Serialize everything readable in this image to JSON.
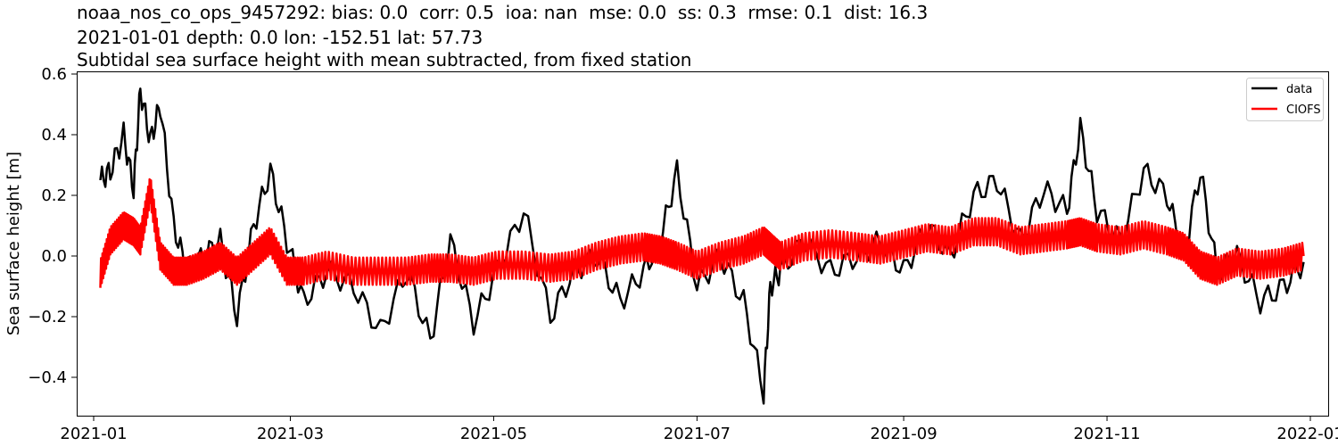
{
  "figure": {
    "title_lines": [
      "noaa_nos_co_ops_9457292: bias: 0.0  corr: 0.5  ioa: nan  mse: 0.0  ss: 0.3  rmse: 0.1  dist: 16.3",
      "2021-01-01 depth: 0.0 lon: -152.51 lat: 57.73",
      "Subtidal sea surface height with mean subtracted, from fixed station"
    ],
    "ylabel": "Sea surface height [m]",
    "colors": {
      "data": "#000000",
      "CIOFS": "#ff0000"
    }
  },
  "chart_data": {
    "type": "line",
    "title": "noaa_nos_co_ops_9457292: bias: 0.0  corr: 0.5  ioa: nan  mse: 0.0  ss: 0.3  rmse: 0.1  dist: 16.3 / 2021-01-01 depth: 0.0 lon: -152.51 lat: 57.73 / Subtidal sea surface height with mean subtracted, from fixed station",
    "xlabel": "",
    "ylabel": "Sea surface height [m]",
    "x_ticks": [
      "2021-01",
      "2021-03",
      "2021-05",
      "2021-07",
      "2021-09",
      "2021-11",
      "2022-01"
    ],
    "y_ticks": [
      -0.4,
      -0.2,
      0.0,
      0.2,
      0.4,
      0.6
    ],
    "y_tick_labels": [
      "−0.4",
      "−0.2",
      "0.0",
      "0.2",
      "0.4",
      "0.6"
    ],
    "ylim": [
      -0.53,
      0.61
    ],
    "xlim": [
      "2020-12-27",
      "2022-01-06"
    ],
    "grid": false,
    "legend": {
      "position": "upper right",
      "entries": [
        "data",
        "CIOFS"
      ]
    },
    "x": [
      "2021-01-03",
      "2021-01-06",
      "2021-01-10",
      "2021-01-13",
      "2021-01-15",
      "2021-01-18",
      "2021-01-21",
      "2021-01-25",
      "2021-01-29",
      "2021-02-03",
      "2021-02-08",
      "2021-02-13",
      "2021-02-18",
      "2021-02-23",
      "2021-02-28",
      "2021-03-05",
      "2021-03-12",
      "2021-03-20",
      "2021-03-28",
      "2021-04-05",
      "2021-04-12",
      "2021-04-18",
      "2021-04-25",
      "2021-05-02",
      "2021-05-10",
      "2021-05-18",
      "2021-05-25",
      "2021-06-01",
      "2021-06-08",
      "2021-06-15",
      "2021-06-20",
      "2021-06-25",
      "2021-07-01",
      "2021-07-08",
      "2021-07-15",
      "2021-07-21",
      "2021-07-23",
      "2021-07-26",
      "2021-08-02",
      "2021-08-10",
      "2021-08-18",
      "2021-08-25",
      "2021-09-01",
      "2021-09-08",
      "2021-09-15",
      "2021-09-22",
      "2021-09-29",
      "2021-10-06",
      "2021-10-13",
      "2021-10-20",
      "2021-10-24",
      "2021-10-29",
      "2021-11-05",
      "2021-11-12",
      "2021-11-19",
      "2021-11-24",
      "2021-11-29",
      "2021-12-04",
      "2021-12-10",
      "2021-12-17",
      "2021-12-24",
      "2021-12-30"
    ],
    "series": [
      {
        "name": "data",
        "color": "#000000",
        "values": [
          0.25,
          0.28,
          0.4,
          0.22,
          0.55,
          0.38,
          0.5,
          0.1,
          -0.05,
          0.0,
          0.05,
          -0.2,
          0.1,
          0.28,
          0.05,
          -0.15,
          -0.05,
          -0.1,
          -0.25,
          -0.05,
          -0.28,
          0.05,
          -0.22,
          -0.05,
          0.15,
          -0.2,
          -0.05,
          0.0,
          -0.15,
          -0.05,
          0.05,
          0.28,
          -0.1,
          0.0,
          -0.15,
          -0.45,
          -0.1,
          -0.05,
          0.05,
          -0.05,
          0.0,
          0.05,
          -0.05,
          0.1,
          0.0,
          0.2,
          0.25,
          0.05,
          0.22,
          0.15,
          0.42,
          0.15,
          0.05,
          0.28,
          0.2,
          0.0,
          0.28,
          -0.05,
          0.0,
          -0.15,
          -0.1,
          -0.02
        ]
      },
      {
        "name": "CIOFS",
        "color": "#ff0000",
        "values": [
          -0.06,
          0.05,
          0.1,
          0.08,
          0.05,
          0.22,
          0.0,
          -0.05,
          -0.05,
          -0.03,
          0.0,
          -0.05,
          0.0,
          0.05,
          -0.05,
          -0.05,
          -0.03,
          -0.05,
          -0.05,
          -0.05,
          -0.04,
          -0.04,
          -0.05,
          -0.03,
          -0.03,
          -0.04,
          -0.03,
          0.0,
          0.02,
          0.03,
          0.02,
          0.0,
          -0.03,
          0.0,
          0.02,
          0.05,
          0.03,
          0.0,
          0.03,
          0.04,
          0.03,
          0.02,
          0.04,
          0.06,
          0.05,
          0.08,
          0.08,
          0.05,
          0.06,
          0.07,
          0.08,
          0.06,
          0.05,
          0.07,
          0.05,
          0.03,
          -0.03,
          -0.05,
          -0.02,
          -0.03,
          -0.02,
          0.0
        ]
      }
    ]
  }
}
